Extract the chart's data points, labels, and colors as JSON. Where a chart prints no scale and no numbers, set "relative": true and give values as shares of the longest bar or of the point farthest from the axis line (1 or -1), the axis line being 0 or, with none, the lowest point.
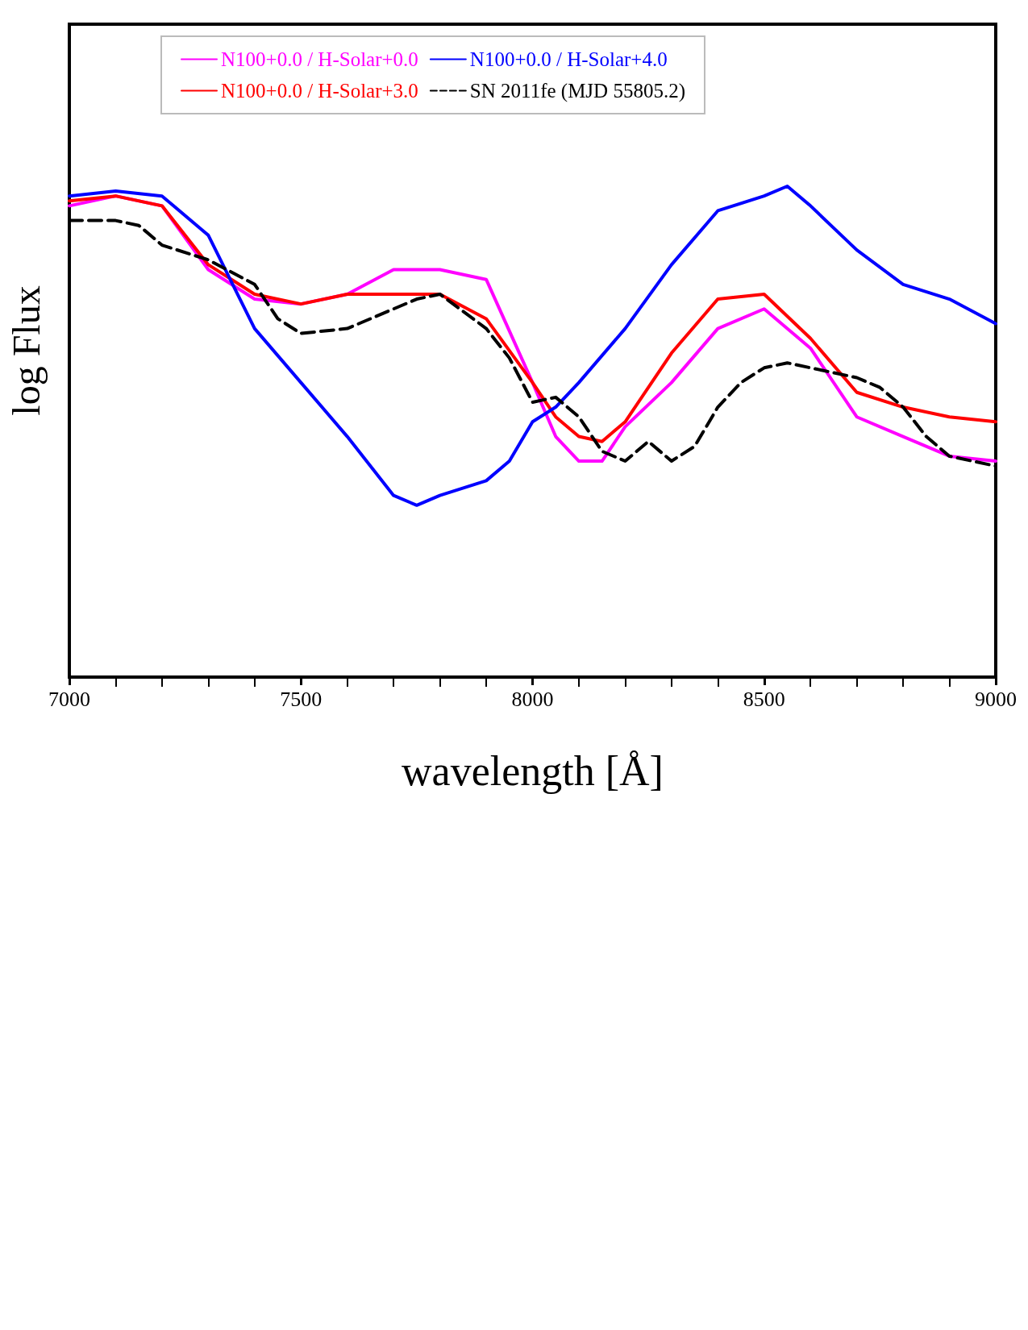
{
  "chart_data": {
    "type": "line",
    "relative": true,
    "xlabel": "wavelength [Å]",
    "ylabel": "log Flux",
    "xlim": [
      7000,
      9000
    ],
    "xticks": [
      7000,
      7500,
      8000,
      8500,
      9000
    ],
    "grid": false,
    "legend": "top left",
    "marker": "none",
    "series": [
      {
        "name": "N100+0.0 / H-Solar+0.0",
        "color": "#ff00ff",
        "x": [
          7000,
          7100,
          7200,
          7300,
          7400,
          7500,
          7600,
          7700,
          7800,
          7900,
          8000,
          8050,
          8100,
          8150,
          8200,
          8300,
          8400,
          8500,
          8600,
          8700,
          8800,
          8900,
          9000
        ],
        "values": [
          0.96,
          0.98,
          0.96,
          0.83,
          0.77,
          0.76,
          0.78,
          0.83,
          0.83,
          0.81,
          0.6,
          0.49,
          0.44,
          0.44,
          0.51,
          0.6,
          0.71,
          0.75,
          0.67,
          0.53,
          0.49,
          0.45,
          0.44
        ]
      },
      {
        "name": "N100+0.0 / H-Solar+3.0",
        "color": "#ff0000",
        "x": [
          7000,
          7100,
          7200,
          7300,
          7400,
          7500,
          7600,
          7700,
          7800,
          7900,
          8000,
          8050,
          8100,
          8150,
          8200,
          8300,
          8400,
          8500,
          8600,
          8700,
          8800,
          8900,
          9000
        ],
        "values": [
          0.97,
          0.98,
          0.96,
          0.84,
          0.78,
          0.76,
          0.78,
          0.78,
          0.78,
          0.73,
          0.6,
          0.53,
          0.49,
          0.48,
          0.52,
          0.66,
          0.77,
          0.78,
          0.69,
          0.58,
          0.55,
          0.53,
          0.52
        ]
      },
      {
        "name": "N100+0.0 / H-Solar+4.0",
        "color": "#0000ff",
        "x": [
          7000,
          7100,
          7200,
          7300,
          7400,
          7500,
          7600,
          7700,
          7750,
          7800,
          7900,
          7950,
          8000,
          8050,
          8100,
          8200,
          8300,
          8400,
          8500,
          8550,
          8600,
          8700,
          8800,
          8900,
          9000
        ],
        "values": [
          0.98,
          0.99,
          0.98,
          0.9,
          0.71,
          0.6,
          0.49,
          0.37,
          0.35,
          0.37,
          0.4,
          0.44,
          0.52,
          0.55,
          0.6,
          0.71,
          0.84,
          0.95,
          0.98,
          1.0,
          0.96,
          0.87,
          0.8,
          0.77,
          0.72
        ]
      },
      {
        "name": "SN 2011fe (MJD 55805.2)",
        "color": "#000000",
        "line_style": "dashed",
        "x": [
          7000,
          7050,
          7100,
          7150,
          7200,
          7300,
          7400,
          7450,
          7500,
          7600,
          7650,
          7700,
          7750,
          7800,
          7900,
          7950,
          8000,
          8050,
          8100,
          8150,
          8200,
          8250,
          8300,
          8350,
          8400,
          8450,
          8500,
          8550,
          8600,
          8650,
          8700,
          8750,
          8800,
          8850,
          8900,
          8950,
          9000
        ],
        "values": [
          0.93,
          0.93,
          0.93,
          0.92,
          0.88,
          0.85,
          0.8,
          0.73,
          0.7,
          0.71,
          0.73,
          0.75,
          0.77,
          0.78,
          0.71,
          0.65,
          0.56,
          0.57,
          0.53,
          0.46,
          0.44,
          0.48,
          0.44,
          0.47,
          0.55,
          0.6,
          0.63,
          0.64,
          0.63,
          0.62,
          0.61,
          0.59,
          0.55,
          0.49,
          0.45,
          0.44,
          0.43
        ]
      }
    ]
  }
}
